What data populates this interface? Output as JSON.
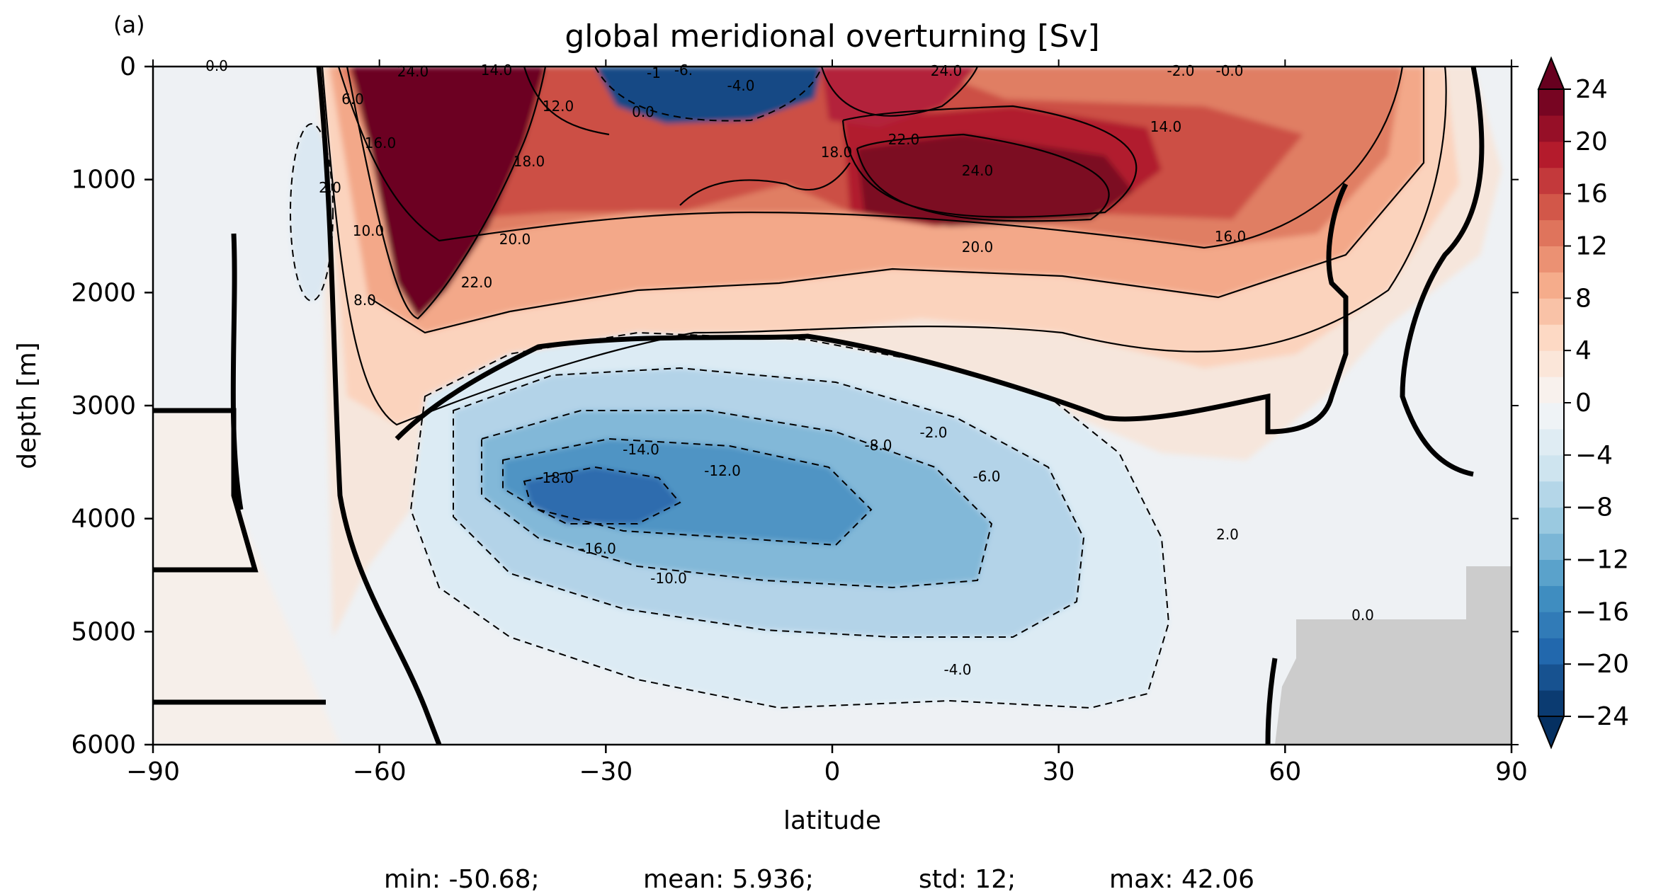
{
  "chart_data": {
    "type": "heatmap",
    "subtype": "filled contour",
    "panel_label": "(a)",
    "title": "global meridional overturning [Sv]",
    "xlabel": "latitude",
    "ylabel": "depth [m]",
    "xlim": [
      -90,
      90
    ],
    "ylim": [
      6000,
      0
    ],
    "y_inverted": true,
    "x_ticks": [
      -90,
      -60,
      -30,
      0,
      30,
      60,
      90
    ],
    "x_tick_labels": [
      "−90",
      "−60",
      "−30",
      "0",
      "30",
      "60",
      "90"
    ],
    "y_ticks": [
      0,
      1000,
      2000,
      3000,
      4000,
      5000,
      6000
    ],
    "y_tick_labels": [
      "0",
      "1000",
      "2000",
      "3000",
      "4000",
      "5000",
      "6000"
    ],
    "colormap": "RdBu_r",
    "colorbar": {
      "range": [
        -24,
        24
      ],
      "step": 2,
      "extend": "both",
      "ticks": [
        24,
        20,
        16,
        12,
        8,
        4,
        0,
        -4,
        -8,
        -12,
        -16,
        -20,
        -24
      ],
      "tick_labels": [
        "24",
        "20",
        "16",
        "12",
        "8",
        "4",
        "0",
        "−4",
        "−8",
        "−12",
        "−16",
        "−20",
        "−24"
      ]
    },
    "contour_interval": 2,
    "negative_contours": "dashed",
    "zero_contour": "thick",
    "land_mask_color": "#cccccc",
    "features": [
      {
        "name": "upper overturning cell (positive)",
        "lat_range": [
          -60,
          75
        ],
        "depth_range": [
          0,
          3000
        ],
        "max_core_lat": 35,
        "max_core_depth": 1050,
        "core_value": 24
      },
      {
        "name": "southern ocean deep positive cell",
        "lat_range": [
          -63,
          -40
        ],
        "depth_range": [
          0,
          2000
        ],
        "core_value": 24
      },
      {
        "name": "abyssal cell (negative)",
        "lat_range": [
          -55,
          45
        ],
        "depth_range": [
          2700,
          5800
        ],
        "min_core_lat": -30,
        "min_core_depth": 3900,
        "core_value": -18
      },
      {
        "name": "shallow tropical negative cell",
        "lat_range": [
          -20,
          0
        ],
        "depth_range": [
          0,
          400
        ],
        "core_value": -24
      },
      {
        "name": "southern negative eddy",
        "lat_range": [
          -73,
          -66
        ],
        "depth_range": [
          500,
          2100
        ],
        "core_value": -2
      }
    ],
    "contour_labels": [
      "0.0",
      "24.0",
      "14.0",
      "6.0",
      "16.0",
      "2.0",
      "10.0",
      "8.0",
      "22.0",
      "20.0",
      "18.0",
      "12.0",
      "-18.0",
      "-16.0",
      "-14.0",
      "-12.0",
      "-10.0",
      "-8.0",
      "-6.0",
      "-4.0",
      "-2.0",
      "2.0",
      "-1",
      "-6.",
      "-4.0",
      "24.0",
      "0.0",
      "-2.0",
      "-0.0"
    ]
  },
  "stats": {
    "min_label": "min: -50.68;",
    "mean_label": "mean: 5.936;",
    "std_label": "std: 12;",
    "max_label": "max: 42.06"
  }
}
